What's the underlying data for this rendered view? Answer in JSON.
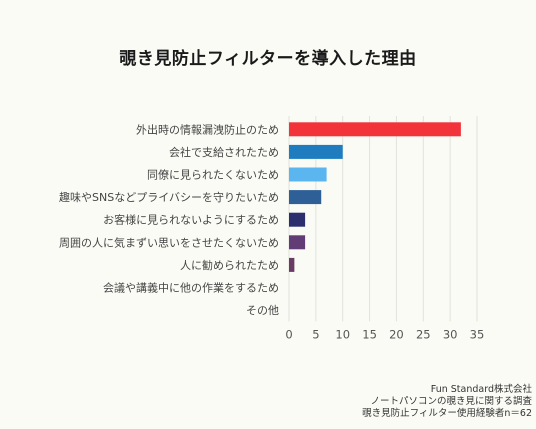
{
  "chart_data": {
    "type": "bar",
    "orientation": "horizontal",
    "title": "覗き見防止フィルターを導入した理由",
    "categories": [
      "外出時の情報漏洩防止のため",
      "会社で支給されたため",
      "同僚に見られたくないため",
      "趣味やSNSなどプライバシーを守りたいため",
      "お客様に見られないようにするため",
      "周囲の人に気まずい思いをさせたくないため",
      "人に勧められたため",
      "会議や講義中に他の作業をするため",
      "その他"
    ],
    "values": [
      32,
      10,
      7,
      6,
      3,
      3,
      1,
      0,
      0
    ],
    "colors": [
      "#f2343a",
      "#1f7dbf",
      "#5bb6ef",
      "#2f5f97",
      "#2b2f6e",
      "#623c74",
      "#6a3c63",
      "#999999",
      "#999999"
    ],
    "xlim": [
      0,
      35
    ],
    "xticks": [
      "0",
      "5",
      "10",
      "15",
      "20",
      "25",
      "30",
      "35"
    ],
    "xlabel": "",
    "ylabel": "",
    "grid": true,
    "legend": "none"
  },
  "source": {
    "line1": "Fun Standard株式会社",
    "line2": "ノートパソコンの覗き見に関する調査",
    "line3": "覗き見防止フィルター使用経験者n＝62"
  }
}
